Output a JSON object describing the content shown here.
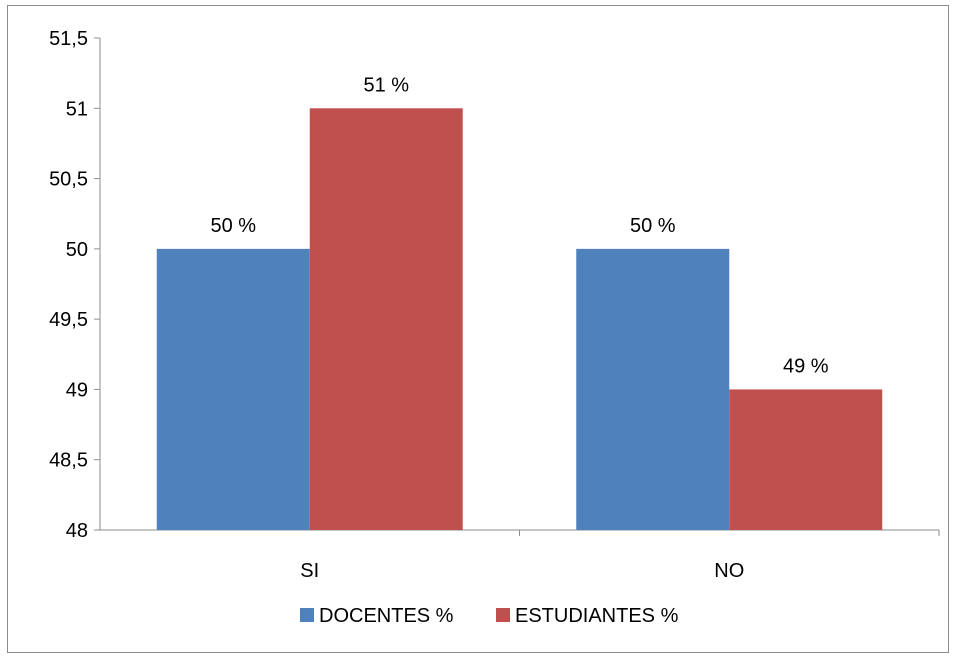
{
  "chart_data": {
    "type": "bar",
    "categories": [
      "SI",
      "NO"
    ],
    "series": [
      {
        "name": "DOCENTES %",
        "values": [
          50,
          50
        ],
        "color": "#4F81BD",
        "labels": [
          "50 %",
          "50 %"
        ]
      },
      {
        "name": "ESTUDIANTES %",
        "values": [
          51,
          49
        ],
        "color": "#C0504D",
        "labels": [
          "51 %",
          "49 %"
        ]
      }
    ],
    "ylim": [
      48,
      51.5
    ],
    "yticks": [
      48,
      48.5,
      49,
      49.5,
      50,
      50.5,
      51,
      51.5
    ],
    "ytick_labels": [
      "48",
      "48,5",
      "49",
      "49,5",
      "50",
      "50,5",
      "51",
      "51,5"
    ],
    "grid": false,
    "legend_position": "bottom"
  }
}
